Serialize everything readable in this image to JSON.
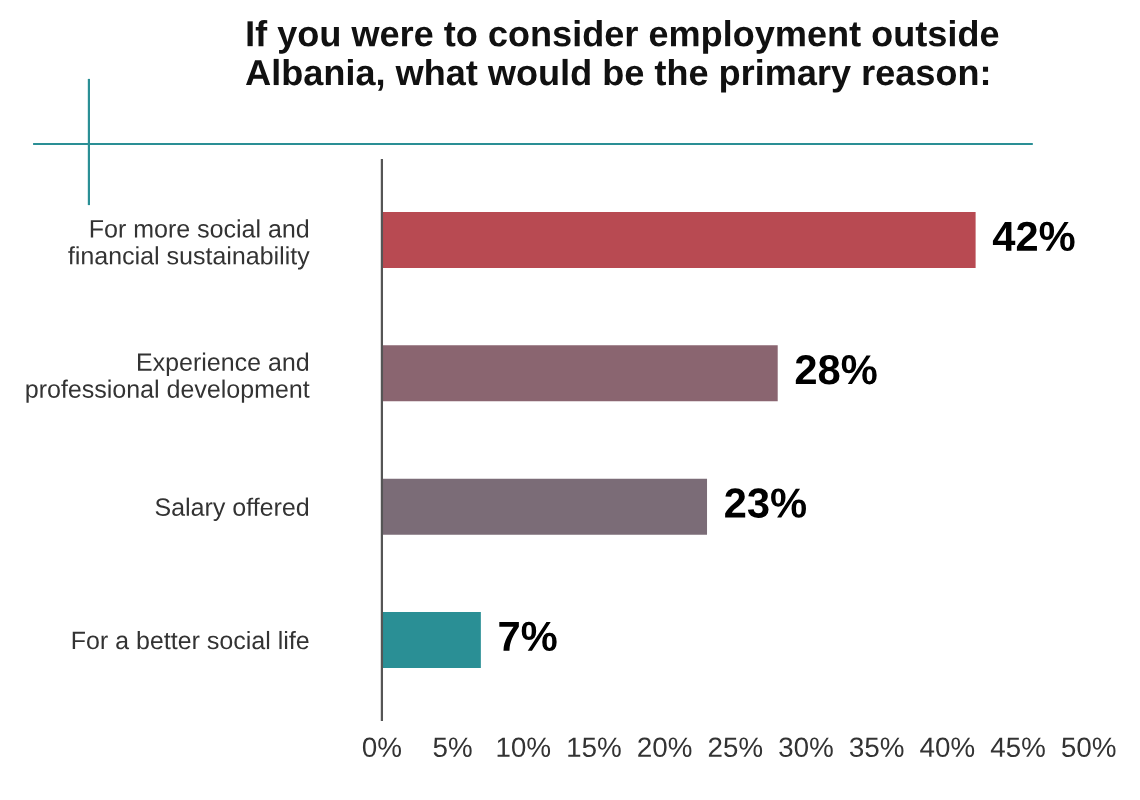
{
  "chart_data": {
    "type": "bar",
    "orientation": "horizontal",
    "title": "If you were to consider employment outside\nAlbania, what would be the primary reason:",
    "categories": [
      "For more social and\nfinancial sustainability",
      "Experience and\nprofessional development",
      "Salary offered",
      "For a better social life"
    ],
    "values": [
      42,
      28,
      23,
      7
    ],
    "colors": [
      "#b84a52",
      "#8a6570",
      "#7b6c77",
      "#2a8f95"
    ],
    "value_labels": [
      "42%",
      "28%",
      "23%",
      "7%"
    ],
    "xlim": [
      0,
      50
    ],
    "xticks": [
      {
        "value": 0,
        "label": "0%"
      },
      {
        "value": 5,
        "label": "5%"
      },
      {
        "value": 10,
        "label": "10%"
      },
      {
        "value": 15,
        "label": "15%"
      },
      {
        "value": 20,
        "label": "20%"
      },
      {
        "value": 25,
        "label": "25%"
      },
      {
        "value": 30,
        "label": "30%"
      },
      {
        "value": 35,
        "label": "35%"
      },
      {
        "value": 40,
        "label": "40%"
      },
      {
        "value": 45,
        "label": "45%"
      },
      {
        "value": 50,
        "label": "50%"
      }
    ],
    "grid": false,
    "legend": false
  }
}
